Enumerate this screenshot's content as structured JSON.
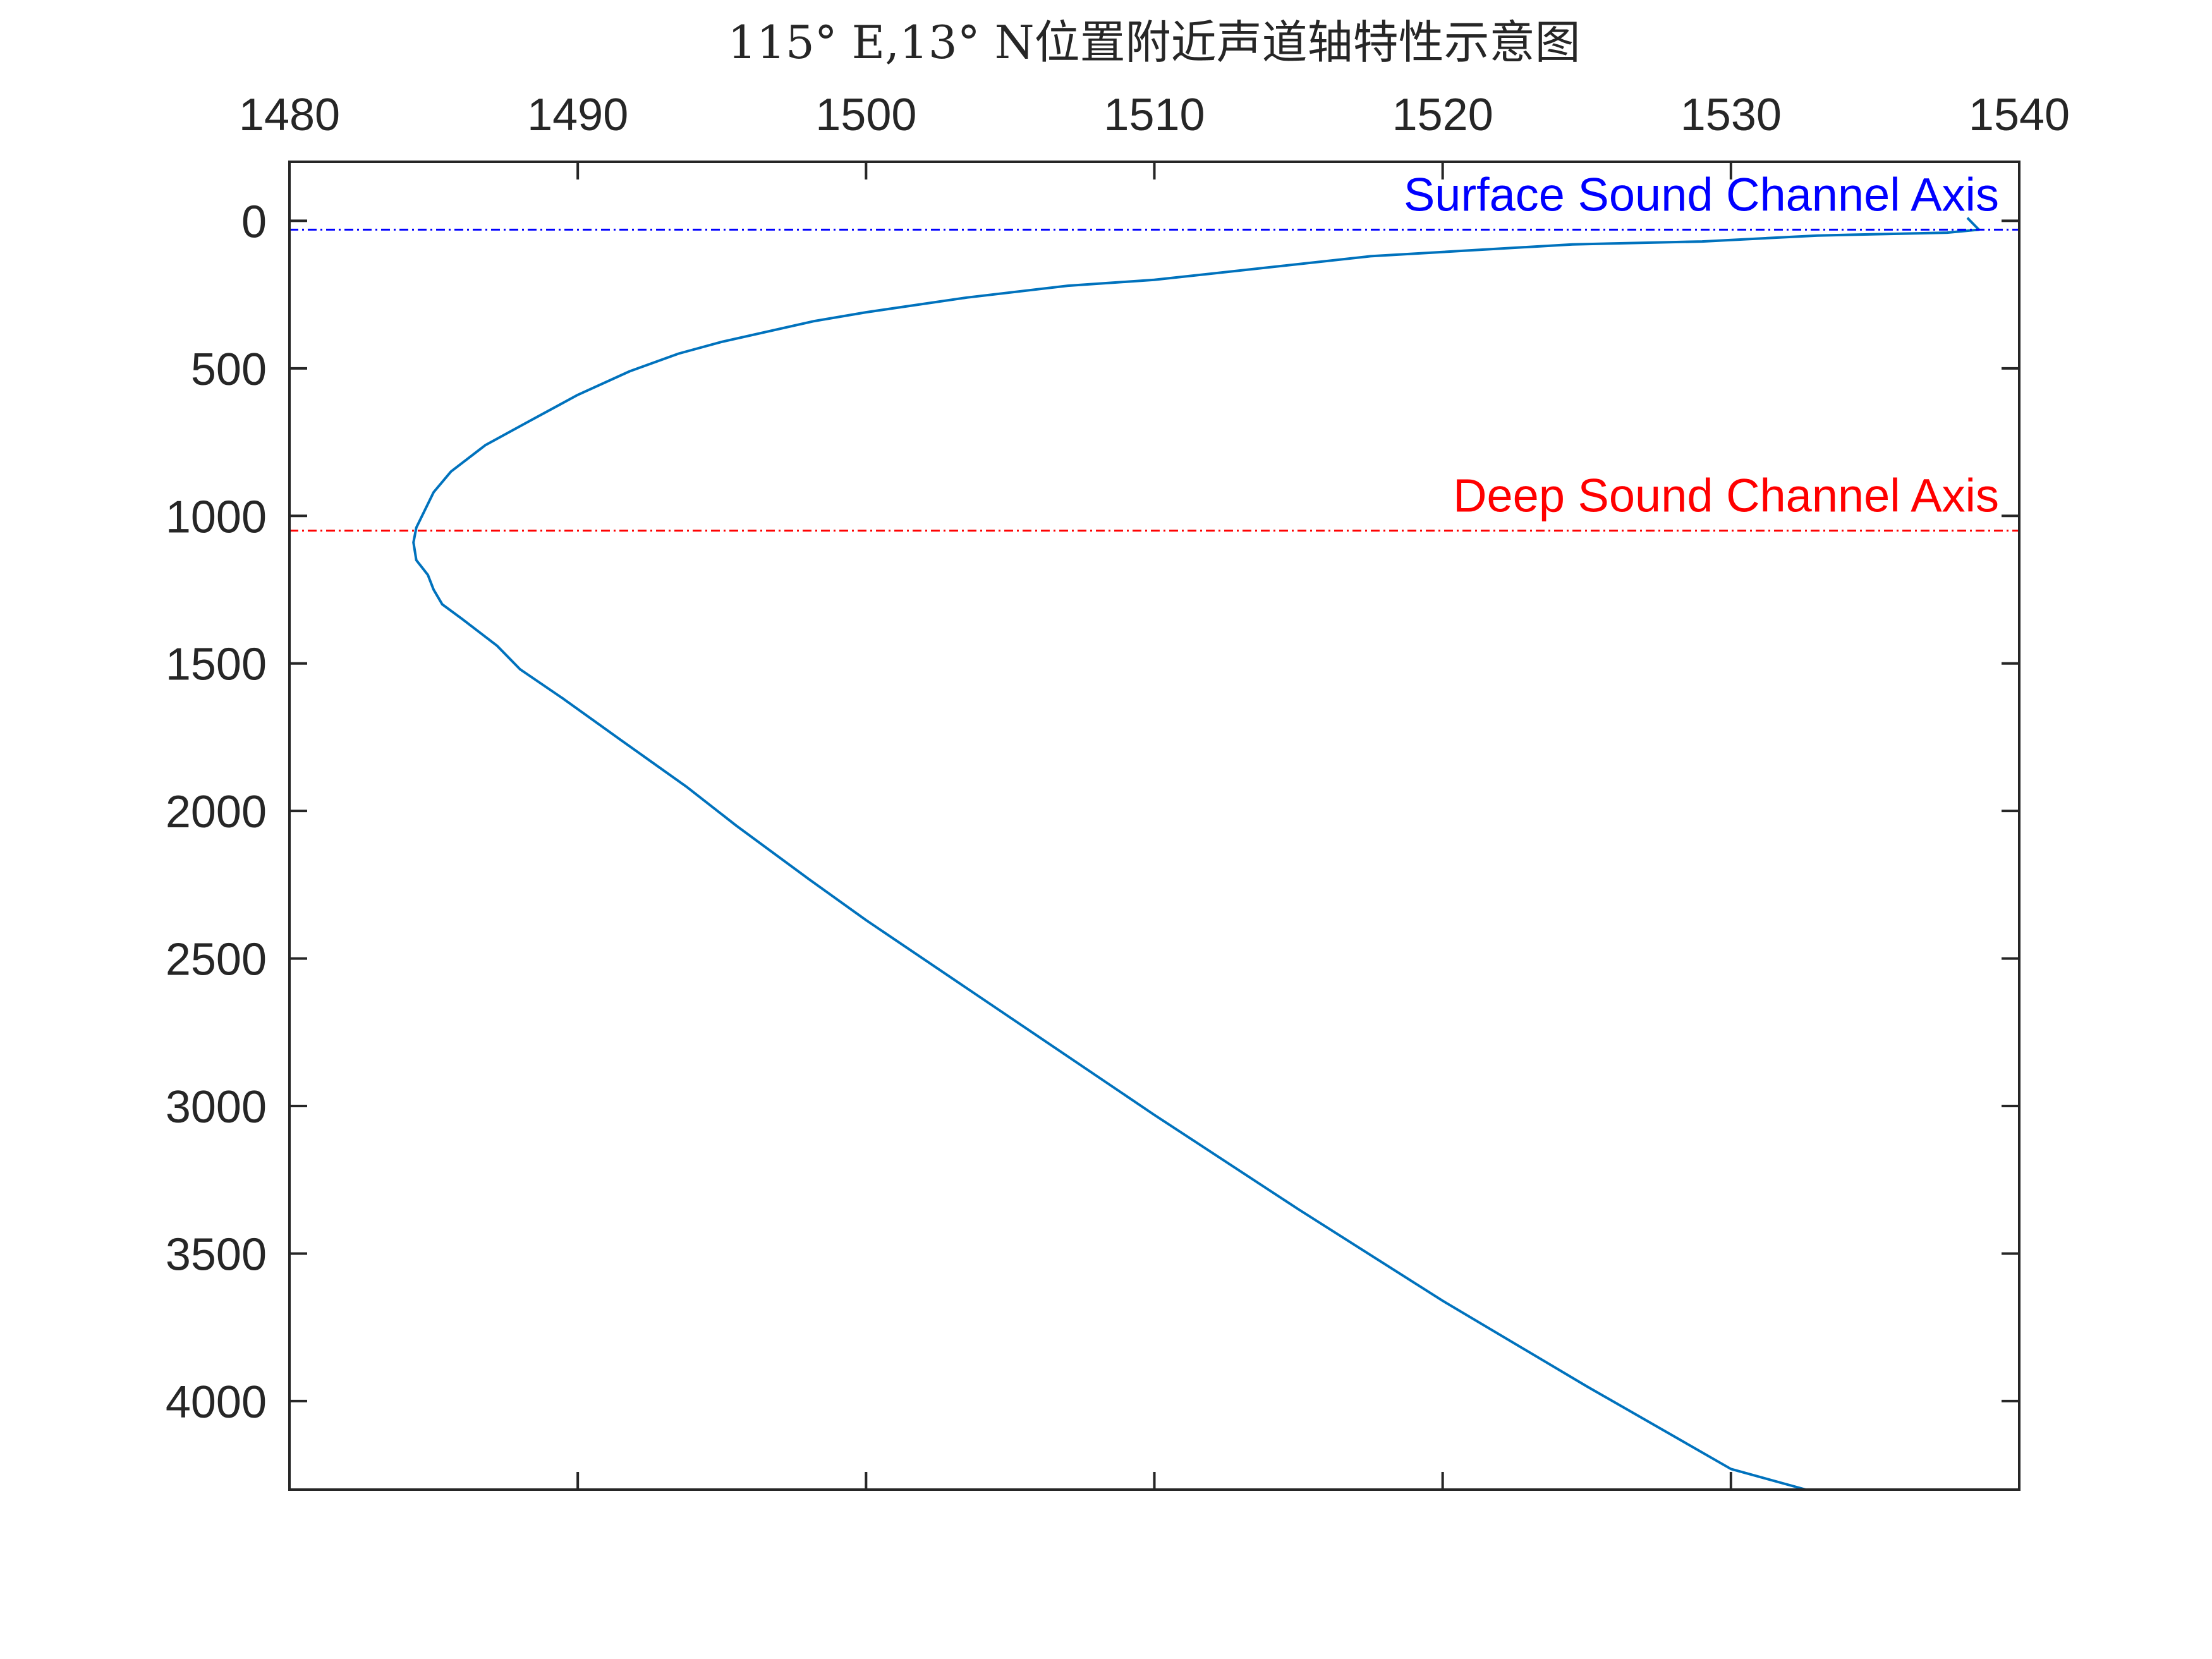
{
  "chart_data": {
    "type": "line",
    "title": "115° E,13° N位置附近声道轴特性示意图",
    "xlabel": "",
    "ylabel": "",
    "x_axis_position": "top",
    "y_axis_reversed": true,
    "xlim": [
      1480,
      1540
    ],
    "ylim": [
      -200,
      4300
    ],
    "x_ticks": [
      1480,
      1490,
      1500,
      1510,
      1520,
      1530,
      1540
    ],
    "y_ticks": [
      0,
      500,
      1000,
      1500,
      2000,
      2500,
      3000,
      3500,
      4000
    ],
    "grid": false,
    "box": true,
    "series": [
      {
        "color": "#0072BD",
        "x": [
          1538.2,
          1538.6,
          1537.5,
          1533.0,
          1529.0,
          1524.5,
          1517.5,
          1510.0,
          1507.0,
          1503.5,
          1500.0,
          1498.2,
          1495.0,
          1493.5,
          1491.8,
          1490.0,
          1488.3,
          1486.8,
          1485.6,
          1485.0,
          1484.7,
          1484.4,
          1484.3,
          1484.4,
          1484.8,
          1485.0,
          1485.3,
          1486.0,
          1487.2,
          1487.5,
          1488.0,
          1489.5,
          1491.5,
          1493.8,
          1495.5,
          1498.0,
          1500.0,
          1505.0,
          1510.0,
          1515.0,
          1520.0,
          1525.0,
          1530.0,
          1532.6
        ],
        "y": [
          -10,
          30,
          40,
          50,
          70,
          80,
          120,
          200,
          220,
          260,
          310,
          340,
          410,
          450,
          510,
          590,
          680,
          760,
          850,
          920,
          980,
          1040,
          1090,
          1150,
          1200,
          1250,
          1300,
          1350,
          1440,
          1470,
          1520,
          1620,
          1760,
          1920,
          2050,
          2230,
          2370,
          2700,
          3030,
          3350,
          3660,
          3950,
          4230,
          4300
        ]
      }
    ],
    "reference_lines": [
      {
        "label": "Surface Sound Channel Axis",
        "y": 30,
        "color": "#0000FF",
        "style": "dash-dot"
      },
      {
        "label": "Deep Sound Channel Axis",
        "y": 1050,
        "color": "#FF0000",
        "style": "dash-dot"
      }
    ]
  }
}
